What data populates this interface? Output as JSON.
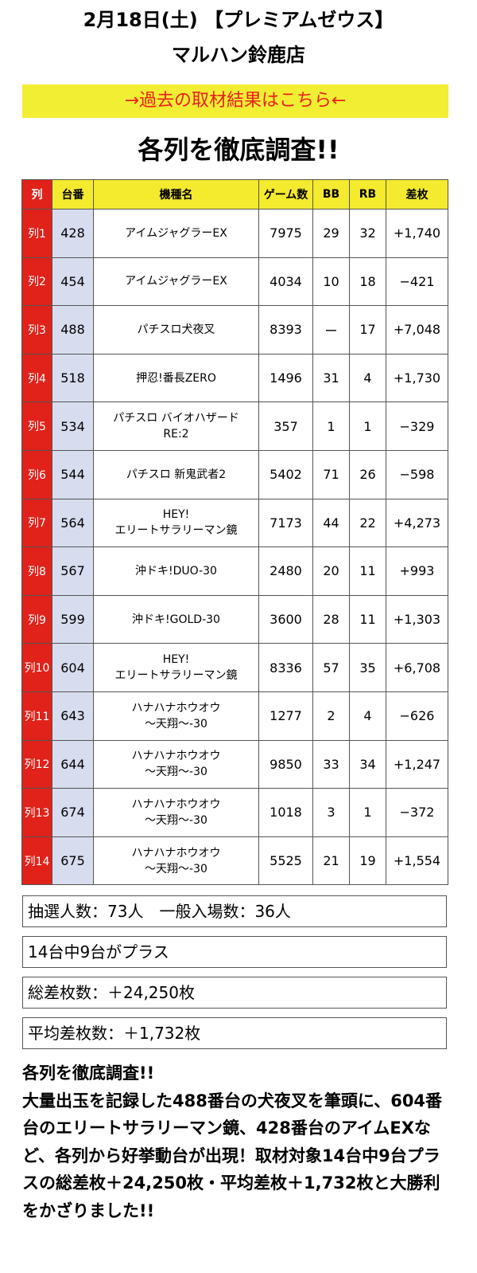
{
  "header": {
    "date_line": "2月18日(土) 【プレミアムゼウス】",
    "store_name": "マルハン鈴鹿店"
  },
  "past_results_link": "→過去の取材結果はこちら←",
  "section_title": "各列を徹底調査!!",
  "colors": {
    "red": "#e0221b",
    "yellow": "#f4ea2e",
    "link_bg": "#f2ee33",
    "daiban_bg": "#d8dcef"
  },
  "table": {
    "headers": [
      "列",
      "台番",
      "機種名",
      "ゲーム数",
      "BB",
      "RB",
      "差枚"
    ],
    "rows": [
      {
        "retsu": "列1",
        "daiban": "428",
        "name": "アイムジャグラーEX",
        "games": "7975",
        "bb": "29",
        "rb": "32",
        "samai": "+1,740"
      },
      {
        "retsu": "列2",
        "daiban": "454",
        "name": "アイムジャグラーEX",
        "games": "4034",
        "bb": "10",
        "rb": "18",
        "samai": "−421"
      },
      {
        "retsu": "列3",
        "daiban": "488",
        "name": "パチスロ犬夜叉",
        "games": "8393",
        "bb": "ー",
        "rb": "17",
        "samai": "+7,048"
      },
      {
        "retsu": "列4",
        "daiban": "518",
        "name": "押忍!番長ZERO",
        "games": "1496",
        "bb": "31",
        "rb": "4",
        "samai": "+1,730"
      },
      {
        "retsu": "列5",
        "daiban": "534",
        "name": "パチスロ バイオハザード\nRE:2",
        "games": "357",
        "bb": "1",
        "rb": "1",
        "samai": "−329"
      },
      {
        "retsu": "列6",
        "daiban": "544",
        "name": "パチスロ 新鬼武者2",
        "games": "5402",
        "bb": "71",
        "rb": "26",
        "samai": "−598"
      },
      {
        "retsu": "列7",
        "daiban": "564",
        "name": "HEY!\nエリートサラリーマン鏡",
        "games": "7173",
        "bb": "44",
        "rb": "22",
        "samai": "+4,273"
      },
      {
        "retsu": "列8",
        "daiban": "567",
        "name": "沖ドキ!DUO-30",
        "games": "2480",
        "bb": "20",
        "rb": "11",
        "samai": "+993"
      },
      {
        "retsu": "列9",
        "daiban": "599",
        "name": "沖ドキ!GOLD-30",
        "games": "3600",
        "bb": "28",
        "rb": "11",
        "samai": "+1,303"
      },
      {
        "retsu": "列10",
        "daiban": "604",
        "name": "HEY!\nエリートサラリーマン鏡",
        "games": "8336",
        "bb": "57",
        "rb": "35",
        "samai": "+6,708"
      },
      {
        "retsu": "列11",
        "daiban": "643",
        "name": "ハナハナホウオウ\n〜天翔〜-30",
        "games": "1277",
        "bb": "2",
        "rb": "4",
        "samai": "−626"
      },
      {
        "retsu": "列12",
        "daiban": "644",
        "name": "ハナハナホウオウ\n〜天翔〜-30",
        "games": "9850",
        "bb": "33",
        "rb": "34",
        "samai": "+1,247"
      },
      {
        "retsu": "列13",
        "daiban": "674",
        "name": "ハナハナホウオウ\n〜天翔〜-30",
        "games": "1018",
        "bb": "3",
        "rb": "1",
        "samai": "−372"
      },
      {
        "retsu": "列14",
        "daiban": "675",
        "name": "ハナハナホウオウ\n〜天翔〜-30",
        "games": "5525",
        "bb": "21",
        "rb": "19",
        "samai": "+1,554"
      }
    ]
  },
  "summary": {
    "lottery": "抽選人数：73人　一般入場数：36人",
    "plus_count": "14台中9台がプラス",
    "total_diff": "総差枚数：＋24,250枚",
    "avg_diff": "平均差枚数：＋1,732枚"
  },
  "commentary": {
    "heading": "各列を徹底調査!!",
    "body": "大量出玉を記録した488番台の犬夜叉を筆頭に、604番台のエリートサラリーマン鏡、428番台のアイムEXなど、各列から好挙動台が出現！取材対象14台中9台プラスの総差枚＋24,250枚・平均差枚＋1,732枚と大勝利をかざりました!!"
  }
}
